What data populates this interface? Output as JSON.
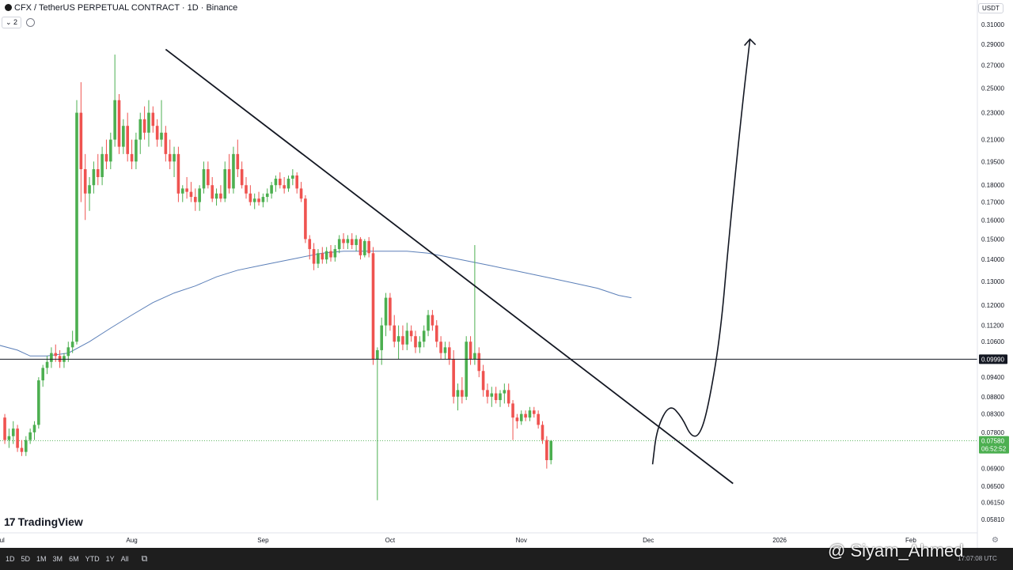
{
  "header": {
    "title": "CFX / TetherUS PERPETUAL CONTRACT · 1D · Binance",
    "indicator_count": "2",
    "currency": "USDT"
  },
  "branding": {
    "logo_mark": "17",
    "logo_text": "TradingView"
  },
  "bottom_toolbar": {
    "ranges": [
      "1D",
      "5D",
      "1M",
      "3M",
      "6M",
      "YTD",
      "1Y",
      "All"
    ],
    "calendar_icon": "calendar-range-icon",
    "clock": "17:07:08 UTC"
  },
  "watermark": "@ Siyam_Ahmed",
  "colors": {
    "up": "#26a69a",
    "up_fill": "#4caf50",
    "down": "#ef5350",
    "ma": "#5b7fb8",
    "line": "#131722",
    "price_tag": "#4caf50"
  },
  "chart_data": {
    "type": "candlestick",
    "y_scale": "log",
    "ylim": [
      0.0575,
      0.322
    ],
    "y_ticks": [
      "0.31000",
      "0.29000",
      "0.27000",
      "0.25000",
      "0.23000",
      "0.21000",
      "0.19500",
      "0.18000",
      "0.17000",
      "0.16000",
      "0.15000",
      "0.14000",
      "0.13000",
      "0.12000",
      "0.11200",
      "0.10600",
      "0.09400",
      "0.08800",
      "0.08300",
      "0.07800",
      "0.06900",
      "0.06500",
      "0.06150",
      "0.05810"
    ],
    "y_tick_values": [
      0.31,
      0.29,
      0.27,
      0.25,
      0.23,
      0.21,
      0.195,
      0.18,
      0.17,
      0.16,
      0.15,
      0.14,
      0.13,
      0.12,
      0.112,
      0.106,
      0.094,
      0.088,
      0.083,
      0.078,
      0.069,
      0.065,
      0.0615,
      0.0581
    ],
    "x_ticks": [
      {
        "label": "Jul",
        "day": -1
      },
      {
        "label": "Aug",
        "day": 30
      },
      {
        "label": "Sep",
        "day": 61
      },
      {
        "label": "Oct",
        "day": 91
      },
      {
        "label": "Nov",
        "day": 122
      },
      {
        "label": "Dec",
        "day": 152
      },
      {
        "label": "2026",
        "day": 183
      },
      {
        "label": "Feb",
        "day": 214
      }
    ],
    "horizontal_level": {
      "value": 0.0999,
      "label": "0.09990"
    },
    "last_price": {
      "value": 0.0758,
      "label": "0.07580",
      "countdown": "06:52:52"
    },
    "ohlc": [
      [
        0.082,
        0.083,
        0.075,
        0.076
      ],
      [
        0.076,
        0.079,
        0.074,
        0.077
      ],
      [
        0.077,
        0.081,
        0.075,
        0.079
      ],
      [
        0.079,
        0.08,
        0.073,
        0.074
      ],
      [
        0.074,
        0.076,
        0.072,
        0.073
      ],
      [
        0.073,
        0.077,
        0.072,
        0.076
      ],
      [
        0.076,
        0.079,
        0.075,
        0.078
      ],
      [
        0.078,
        0.081,
        0.076,
        0.08
      ],
      [
        0.08,
        0.094,
        0.079,
        0.093
      ],
      [
        0.093,
        0.098,
        0.091,
        0.097
      ],
      [
        0.097,
        0.101,
        0.095,
        0.099
      ],
      [
        0.099,
        0.104,
        0.097,
        0.102
      ],
      [
        0.102,
        0.105,
        0.099,
        0.101
      ],
      [
        0.101,
        0.103,
        0.097,
        0.099
      ],
      [
        0.099,
        0.102,
        0.097,
        0.101
      ],
      [
        0.101,
        0.106,
        0.099,
        0.104
      ],
      [
        0.104,
        0.11,
        0.102,
        0.106
      ],
      [
        0.106,
        0.24,
        0.105,
        0.23
      ],
      [
        0.23,
        0.255,
        0.17,
        0.19
      ],
      [
        0.19,
        0.2,
        0.16,
        0.175
      ],
      [
        0.175,
        0.185,
        0.165,
        0.18
      ],
      [
        0.18,
        0.195,
        0.175,
        0.19
      ],
      [
        0.19,
        0.2,
        0.18,
        0.185
      ],
      [
        0.185,
        0.205,
        0.18,
        0.2
      ],
      [
        0.2,
        0.21,
        0.19,
        0.195
      ],
      [
        0.195,
        0.215,
        0.19,
        0.21
      ],
      [
        0.21,
        0.28,
        0.205,
        0.24
      ],
      [
        0.24,
        0.245,
        0.2,
        0.205
      ],
      [
        0.205,
        0.225,
        0.2,
        0.22
      ],
      [
        0.22,
        0.23,
        0.195,
        0.2
      ],
      [
        0.2,
        0.21,
        0.19,
        0.195
      ],
      [
        0.195,
        0.215,
        0.19,
        0.21
      ],
      [
        0.21,
        0.23,
        0.2,
        0.225
      ],
      [
        0.225,
        0.235,
        0.21,
        0.215
      ],
      [
        0.215,
        0.24,
        0.205,
        0.23
      ],
      [
        0.23,
        0.235,
        0.215,
        0.22
      ],
      [
        0.22,
        0.225,
        0.205,
        0.21
      ],
      [
        0.21,
        0.24,
        0.205,
        0.215
      ],
      [
        0.215,
        0.22,
        0.195,
        0.2
      ],
      [
        0.2,
        0.21,
        0.19,
        0.195
      ],
      [
        0.195,
        0.205,
        0.185,
        0.2
      ],
      [
        0.2,
        0.205,
        0.17,
        0.175
      ],
      [
        0.175,
        0.18,
        0.17,
        0.178
      ],
      [
        0.178,
        0.185,
        0.172,
        0.176
      ],
      [
        0.176,
        0.182,
        0.17,
        0.173
      ],
      [
        0.173,
        0.178,
        0.165,
        0.17
      ],
      [
        0.17,
        0.18,
        0.165,
        0.178
      ],
      [
        0.178,
        0.195,
        0.175,
        0.19
      ],
      [
        0.19,
        0.195,
        0.178,
        0.18
      ],
      [
        0.18,
        0.185,
        0.17,
        0.172
      ],
      [
        0.172,
        0.178,
        0.168,
        0.175
      ],
      [
        0.175,
        0.18,
        0.17,
        0.172
      ],
      [
        0.172,
        0.195,
        0.17,
        0.19
      ],
      [
        0.19,
        0.2,
        0.175,
        0.178
      ],
      [
        0.178,
        0.205,
        0.175,
        0.2
      ],
      [
        0.2,
        0.21,
        0.185,
        0.19
      ],
      [
        0.19,
        0.195,
        0.178,
        0.18
      ],
      [
        0.18,
        0.185,
        0.172,
        0.175
      ],
      [
        0.175,
        0.18,
        0.168,
        0.17
      ],
      [
        0.17,
        0.175,
        0.166,
        0.172
      ],
      [
        0.172,
        0.176,
        0.168,
        0.17
      ],
      [
        0.17,
        0.175,
        0.167,
        0.173
      ],
      [
        0.173,
        0.178,
        0.17,
        0.175
      ],
      [
        0.175,
        0.182,
        0.172,
        0.18
      ],
      [
        0.18,
        0.186,
        0.176,
        0.184
      ],
      [
        0.184,
        0.188,
        0.178,
        0.18
      ],
      [
        0.18,
        0.185,
        0.175,
        0.178
      ],
      [
        0.178,
        0.186,
        0.176,
        0.184
      ],
      [
        0.184,
        0.19,
        0.18,
        0.186
      ],
      [
        0.186,
        0.188,
        0.175,
        0.178
      ],
      [
        0.178,
        0.182,
        0.17,
        0.172
      ],
      [
        0.172,
        0.174,
        0.148,
        0.15
      ],
      [
        0.15,
        0.152,
        0.14,
        0.145
      ],
      [
        0.145,
        0.148,
        0.135,
        0.138
      ],
      [
        0.138,
        0.145,
        0.136,
        0.143
      ],
      [
        0.143,
        0.146,
        0.138,
        0.14
      ],
      [
        0.14,
        0.146,
        0.138,
        0.144
      ],
      [
        0.144,
        0.147,
        0.139,
        0.141
      ],
      [
        0.141,
        0.147,
        0.139,
        0.145
      ],
      [
        0.145,
        0.152,
        0.143,
        0.15
      ],
      [
        0.15,
        0.153,
        0.145,
        0.148
      ],
      [
        0.148,
        0.152,
        0.145,
        0.15
      ],
      [
        0.15,
        0.153,
        0.145,
        0.147
      ],
      [
        0.147,
        0.152,
        0.144,
        0.15
      ],
      [
        0.15,
        0.151,
        0.14,
        0.142
      ],
      [
        0.142,
        0.15,
        0.141,
        0.149
      ],
      [
        0.149,
        0.151,
        0.141,
        0.143
      ],
      [
        0.143,
        0.146,
        0.098,
        0.1
      ],
      [
        0.1,
        0.104,
        0.062,
        0.103
      ],
      [
        0.103,
        0.115,
        0.098,
        0.112
      ],
      [
        0.112,
        0.125,
        0.108,
        0.123
      ],
      [
        0.123,
        0.125,
        0.11,
        0.112
      ],
      [
        0.112,
        0.116,
        0.104,
        0.106
      ],
      [
        0.106,
        0.112,
        0.1,
        0.108
      ],
      [
        0.108,
        0.112,
        0.103,
        0.105
      ],
      [
        0.105,
        0.113,
        0.103,
        0.11
      ],
      [
        0.11,
        0.112,
        0.106,
        0.108
      ],
      [
        0.108,
        0.11,
        0.102,
        0.104
      ],
      [
        0.104,
        0.108,
        0.102,
        0.106
      ],
      [
        0.106,
        0.112,
        0.104,
        0.11
      ],
      [
        0.11,
        0.118,
        0.108,
        0.116
      ],
      [
        0.116,
        0.118,
        0.11,
        0.112
      ],
      [
        0.112,
        0.114,
        0.104,
        0.106
      ],
      [
        0.106,
        0.108,
        0.1,
        0.102
      ],
      [
        0.102,
        0.106,
        0.1,
        0.104
      ],
      [
        0.104,
        0.106,
        0.098,
        0.1
      ],
      [
        0.1,
        0.103,
        0.086,
        0.088
      ],
      [
        0.088,
        0.092,
        0.084,
        0.09
      ],
      [
        0.09,
        0.094,
        0.086,
        0.088
      ],
      [
        0.088,
        0.108,
        0.087,
        0.106
      ],
      [
        0.106,
        0.108,
        0.098,
        0.1
      ],
      [
        0.1,
        0.147,
        0.098,
        0.102
      ],
      [
        0.102,
        0.104,
        0.094,
        0.096
      ],
      [
        0.096,
        0.098,
        0.088,
        0.09
      ],
      [
        0.09,
        0.092,
        0.086,
        0.088
      ],
      [
        0.088,
        0.091,
        0.085,
        0.089
      ],
      [
        0.089,
        0.091,
        0.086,
        0.087
      ],
      [
        0.087,
        0.09,
        0.085,
        0.089
      ],
      [
        0.089,
        0.092,
        0.086,
        0.09
      ],
      [
        0.09,
        0.092,
        0.085,
        0.086
      ],
      [
        0.086,
        0.087,
        0.076,
        0.082
      ],
      [
        0.082,
        0.083,
        0.079,
        0.081
      ],
      [
        0.081,
        0.084,
        0.08,
        0.083
      ],
      [
        0.083,
        0.084,
        0.081,
        0.082
      ],
      [
        0.082,
        0.085,
        0.081,
        0.084
      ],
      [
        0.084,
        0.085,
        0.082,
        0.083
      ],
      [
        0.083,
        0.084,
        0.079,
        0.08
      ],
      [
        0.08,
        0.081,
        0.075,
        0.076
      ],
      [
        0.076,
        0.077,
        0.069,
        0.071
      ],
      [
        0.071,
        0.076,
        0.07,
        0.0758
      ]
    ],
    "ma_series": [
      [
        -3,
        0.106
      ],
      [
        -2,
        0.105
      ],
      [
        3,
        0.103
      ],
      [
        6,
        0.101
      ],
      [
        10,
        0.101
      ],
      [
        15,
        0.102
      ],
      [
        20,
        0.106
      ],
      [
        25,
        0.111
      ],
      [
        30,
        0.116
      ],
      [
        35,
        0.121
      ],
      [
        40,
        0.125
      ],
      [
        45,
        0.128
      ],
      [
        50,
        0.132
      ],
      [
        55,
        0.135
      ],
      [
        60,
        0.137
      ],
      [
        65,
        0.139
      ],
      [
        70,
        0.141
      ],
      [
        75,
        0.143
      ],
      [
        80,
        0.144
      ],
      [
        85,
        0.144
      ],
      [
        90,
        0.144
      ],
      [
        95,
        0.144
      ],
      [
        100,
        0.143
      ],
      [
        105,
        0.141
      ],
      [
        110,
        0.139
      ],
      [
        115,
        0.137
      ],
      [
        120,
        0.135
      ],
      [
        125,
        0.133
      ],
      [
        130,
        0.131
      ],
      [
        135,
        0.129
      ],
      [
        140,
        0.127
      ],
      [
        145,
        0.124
      ],
      [
        148,
        0.123
      ]
    ],
    "trendline": [
      [
        38,
        0.285
      ],
      [
        172,
        0.0656
      ]
    ],
    "projection_path": [
      [
        153,
        0.07
      ],
      [
        154,
        0.079
      ],
      [
        157,
        0.086
      ],
      [
        160,
        0.082
      ],
      [
        162,
        0.077
      ],
      [
        164,
        0.077
      ],
      [
        166,
        0.084
      ],
      [
        169,
        0.108
      ],
      [
        171,
        0.15
      ],
      [
        174,
        0.23
      ],
      [
        176,
        0.295
      ]
    ]
  }
}
